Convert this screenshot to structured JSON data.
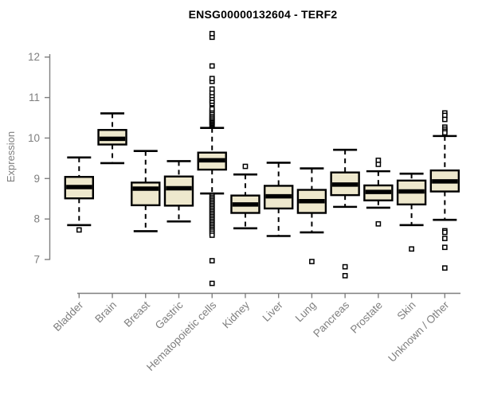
{
  "chart_data": {
    "type": "boxplot",
    "title": "ENSG00000132604 - TERF2",
    "ylabel": "Expression",
    "xlabel": "",
    "y_ticks": [
      7,
      8,
      9,
      10,
      11,
      12
    ],
    "ylim": [
      6.3,
      12.7
    ],
    "grid": "off",
    "legend": "none",
    "categories": [
      "Bladder",
      "Brain",
      "Breast",
      "Gastric",
      "Hematopoietic cells",
      "Kidney",
      "Liver",
      "Lung",
      "Pancreas",
      "Prostate",
      "Skin",
      "Unknown / Other"
    ],
    "series": [
      {
        "label": "Bladder",
        "whisker_low": 7.85,
        "q1": 8.51,
        "median": 8.79,
        "q3": 9.04,
        "whisker_high": 9.52,
        "outliers": [
          7.73
        ]
      },
      {
        "label": "Brain",
        "whisker_low": 9.38,
        "q1": 9.84,
        "median": 9.98,
        "q3": 10.2,
        "whisker_high": 10.61,
        "outliers": []
      },
      {
        "label": "Breast",
        "whisker_low": 7.7,
        "q1": 8.34,
        "median": 8.75,
        "q3": 8.9,
        "whisker_high": 9.68,
        "outliers": []
      },
      {
        "label": "Gastric",
        "whisker_low": 7.94,
        "q1": 8.33,
        "median": 8.76,
        "q3": 9.05,
        "whisker_high": 9.43,
        "outliers": []
      },
      {
        "label": "Hematopoietic cells",
        "whisker_low": 8.63,
        "q1": 9.22,
        "median": 9.45,
        "q3": 9.64,
        "whisker_high": 10.25,
        "outliers": [
          10.3,
          10.33,
          10.36,
          10.39,
          10.42,
          10.45,
          10.48,
          10.51,
          10.55,
          10.59,
          10.63,
          10.68,
          10.72,
          10.85,
          10.91,
          10.98,
          11.05,
          11.12,
          11.21,
          11.4,
          11.47,
          11.78,
          12.49,
          12.58,
          8.58,
          8.54,
          8.5,
          8.46,
          8.42,
          8.38,
          8.34,
          8.3,
          8.26,
          8.22,
          8.18,
          8.14,
          8.1,
          8.06,
          8.02,
          7.98,
          7.94,
          7.9,
          7.86,
          7.82,
          7.78,
          7.74,
          7.7,
          7.65,
          7.6,
          6.97,
          6.41
        ]
      },
      {
        "label": "Kidney",
        "whisker_low": 7.77,
        "q1": 8.15,
        "median": 8.36,
        "q3": 8.58,
        "whisker_high": 9.1,
        "outliers": [
          9.3
        ]
      },
      {
        "label": "Liver",
        "whisker_low": 7.58,
        "q1": 8.26,
        "median": 8.56,
        "q3": 8.82,
        "whisker_high": 9.39,
        "outliers": []
      },
      {
        "label": "Lung",
        "whisker_low": 7.67,
        "q1": 8.15,
        "median": 8.44,
        "q3": 8.72,
        "whisker_high": 9.25,
        "outliers": [
          6.95
        ]
      },
      {
        "label": "Pancreas",
        "whisker_low": 8.3,
        "q1": 8.59,
        "median": 8.85,
        "q3": 9.15,
        "whisker_high": 9.71,
        "outliers": [
          6.82,
          6.6
        ]
      },
      {
        "label": "Prostate",
        "whisker_low": 8.28,
        "q1": 8.46,
        "median": 8.67,
        "q3": 8.83,
        "whisker_high": 9.18,
        "outliers": [
          9.45,
          9.35,
          7.88
        ]
      },
      {
        "label": "Skin",
        "whisker_low": 7.85,
        "q1": 8.36,
        "median": 8.68,
        "q3": 8.95,
        "whisker_high": 9.12,
        "outliers": [
          7.26
        ]
      },
      {
        "label": "Unknown / Other",
        "whisker_low": 7.98,
        "q1": 8.68,
        "median": 8.93,
        "q3": 9.2,
        "whisker_high": 10.05,
        "outliers": [
          10.62,
          10.56,
          10.46,
          10.27,
          10.22,
          10.17,
          10.13,
          7.71,
          7.67,
          7.52,
          7.3,
          6.79
        ]
      }
    ],
    "colors": {
      "box_fill": "#EEE8CD",
      "box_stroke": "#000000",
      "median": "#000000",
      "axis": "#7f7f7f",
      "title": "#000000",
      "background": "#FFFFFF"
    }
  }
}
